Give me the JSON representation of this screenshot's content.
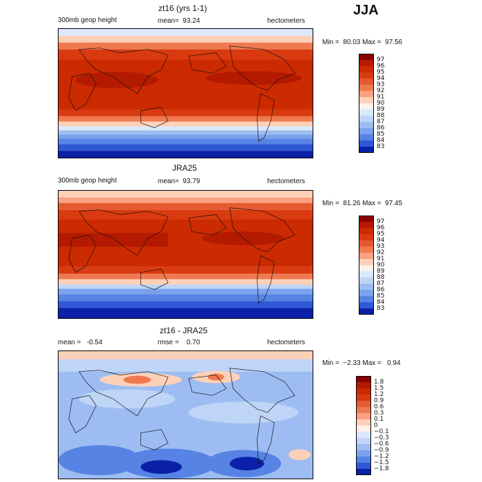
{
  "season": "JJA",
  "panels": [
    {
      "title": "zt16 (yrs 1-1)",
      "left": "300mb geop height",
      "center": "mean=  93.24",
      "right": "hectometers",
      "minmax": "Min =  80.03 Max =  97.56",
      "colorbar": {
        "labels": [
          "97",
          "96",
          "95",
          "94",
          "93",
          "92",
          "91",
          "90",
          "89",
          "88",
          "87",
          "86",
          "85",
          "84",
          "83"
        ],
        "colors": [
          "#8b0000",
          "#b31a00",
          "#cc2a00",
          "#d93a10",
          "#e55a30",
          "#f07a50",
          "#fa9f80",
          "#fdd0b8",
          "#fff0ea",
          "#dbe8fb",
          "#bfd5f7",
          "#9dbdf2",
          "#7aa2ec",
          "#5683e4",
          "#2f58d6",
          "#0a20a8"
        ]
      }
    },
    {
      "title": "JRA25",
      "left": "300mb geop height",
      "center": "mean=  93.79",
      "right": "hectometers",
      "minmax": "Min =  81.26 Max =  97.45",
      "colorbar": {
        "labels": [
          "97",
          "96",
          "95",
          "94",
          "93",
          "92",
          "91",
          "90",
          "89",
          "88",
          "87",
          "86",
          "85",
          "84",
          "83"
        ],
        "colors": [
          "#8b0000",
          "#b31a00",
          "#cc2a00",
          "#d93a10",
          "#e55a30",
          "#f07a50",
          "#fa9f80",
          "#fdd0b8",
          "#fff0ea",
          "#dbe8fb",
          "#bfd5f7",
          "#9dbdf2",
          "#7aa2ec",
          "#5683e4",
          "#2f58d6",
          "#0a20a8"
        ]
      }
    },
    {
      "title": "zt16 - JRA25",
      "left": "mean =   -0.54",
      "center": "rmse =    0.70",
      "right": "hectometers",
      "minmax": "Min =  −2.33 Max =   0.94",
      "colorbar": {
        "labels": [
          "1.8",
          "1.5",
          "1.2",
          "0.9",
          "0.6",
          "0.3",
          "0.1",
          "0",
          "−0.1",
          "−0.3",
          "−0.6",
          "−0.9",
          "−1.2",
          "−1.5",
          "−1.8"
        ],
        "colors": [
          "#8b0000",
          "#b31a00",
          "#cc2a00",
          "#d93a10",
          "#e55a30",
          "#f07a50",
          "#fa9f80",
          "#fdd0b8",
          "#fff0ea",
          "#dbe8fb",
          "#bfd5f7",
          "#9dbdf2",
          "#7aa2ec",
          "#5683e4",
          "#2f58d6",
          "#0a20a8"
        ]
      }
    }
  ]
}
